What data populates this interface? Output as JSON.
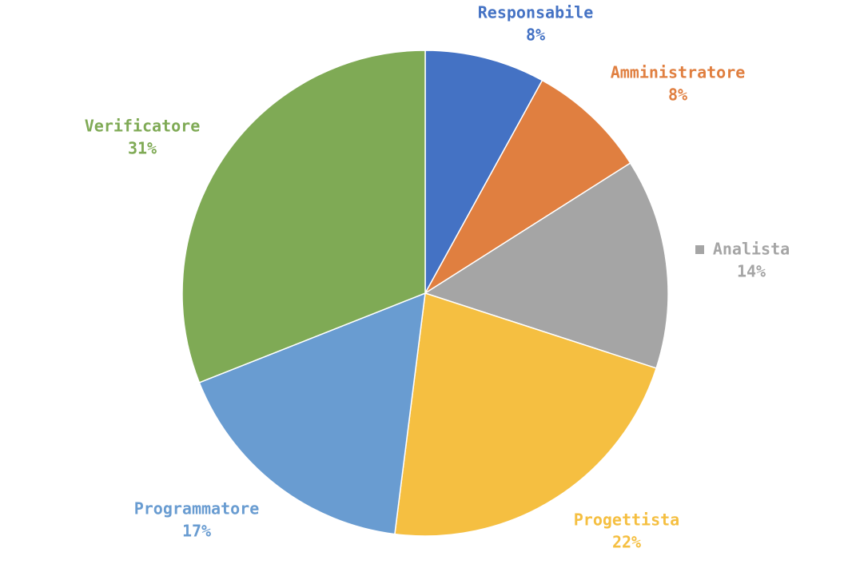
{
  "chart_data": {
    "type": "pie",
    "categories": [
      "Responsabile",
      "Amministratore",
      "Analista",
      "Progettista",
      "Programmatore",
      "Verificatore"
    ],
    "values": [
      8,
      8,
      14,
      22,
      17,
      31
    ],
    "value_labels": [
      "8%",
      "8%",
      "14%",
      "22%",
      "17%",
      "31%"
    ],
    "colors": [
      "#4472C4",
      "#E07F40",
      "#A5A5A5",
      "#F5BF41",
      "#699CD1",
      "#7FAA55"
    ],
    "start_angle_deg": 0,
    "direction": "clockwise",
    "legend_marker_on": [
      "Analista"
    ]
  }
}
